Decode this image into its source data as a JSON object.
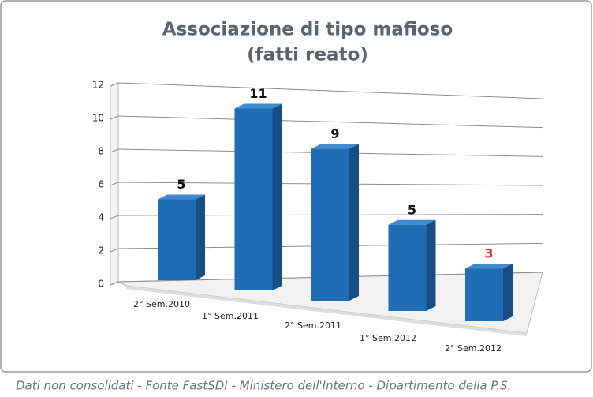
{
  "chart_data": {
    "type": "bar3d",
    "title": "Associazione di tipo mafioso",
    "subtitle": "(fatti reato)",
    "categories": [
      "2° Sem.2010",
      "1° Sem.2011",
      "2° Sem.2011",
      "1° Sem.2012",
      "2° Sem.2012"
    ],
    "values": [
      5,
      11,
      9,
      5,
      3
    ],
    "color": "#1f6db5",
    "value_label_colors": [
      "#111111",
      "#111111",
      "#111111",
      "#111111",
      "#e0302a"
    ],
    "ylim": [
      0,
      12
    ],
    "yticks": [
      0,
      2,
      4,
      6,
      8,
      10,
      12
    ],
    "grid": true,
    "source": "Dati non consolidati - Fonte FastSDI - Ministero dell'Interno - Dipartimento della P.S."
  }
}
